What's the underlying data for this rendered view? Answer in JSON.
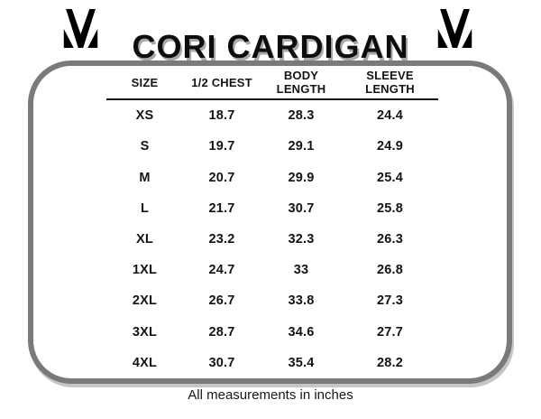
{
  "page": {
    "title": "CORI CARDIGAN",
    "footnote": "All measurements in inches"
  },
  "icons": {
    "brand_logo": "m-monogram-icon"
  },
  "size_chart": {
    "columns": [
      "SIZE",
      "1/2 CHEST",
      "BODY LENGTH",
      "SLEEVE LENGTH"
    ],
    "rows": [
      [
        "XS",
        "18.7",
        "28.3",
        "24.4"
      ],
      [
        "S",
        "19.7",
        "29.1",
        "24.9"
      ],
      [
        "M",
        "20.7",
        "29.9",
        "25.4"
      ],
      [
        "L",
        "21.7",
        "30.7",
        "25.8"
      ],
      [
        "XL",
        "23.2",
        "32.3",
        "26.3"
      ],
      [
        "1XL",
        "24.7",
        "33",
        "26.8"
      ],
      [
        "2XL",
        "26.7",
        "33.8",
        "27.3"
      ],
      [
        "3XL",
        "28.7",
        "34.6",
        "27.7"
      ],
      [
        "4XL",
        "30.7",
        "35.4",
        "28.2"
      ]
    ]
  },
  "colors": {
    "text": "#141414",
    "box_border": "#7a7a7a",
    "shadow": "#a8a8a8"
  }
}
